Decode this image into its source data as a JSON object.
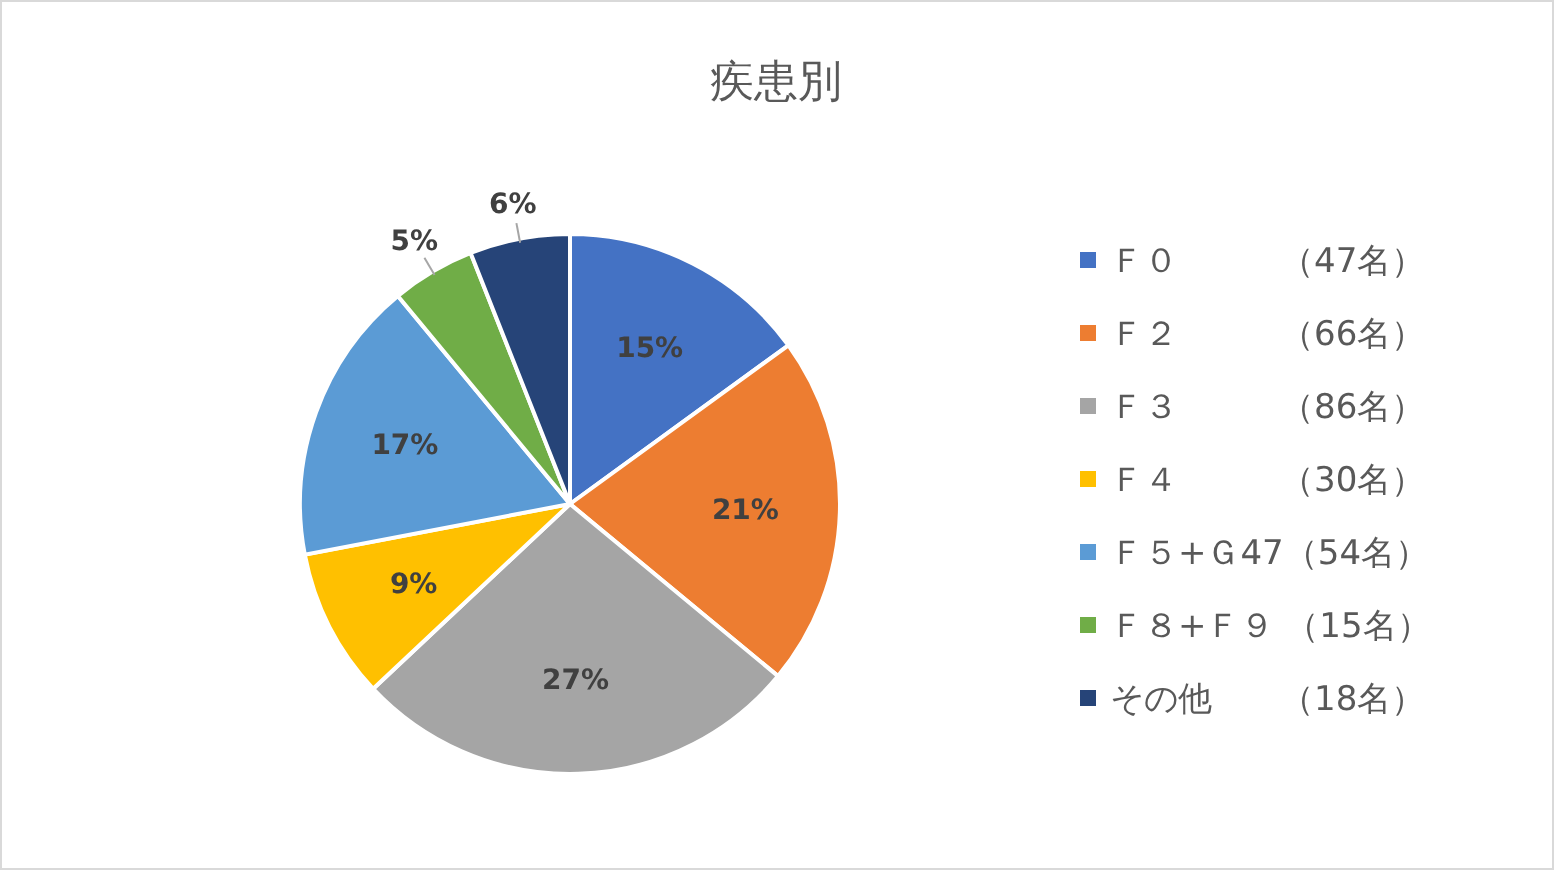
{
  "chart_data": {
    "type": "pie",
    "title": "疾患別",
    "categories": [
      "Ｆ０　　　（47名）",
      "Ｆ２　　　（66名）",
      "Ｆ３　　　（86名）",
      "Ｆ４　　　（30名）",
      "Ｆ５+Ｇ47（54名）",
      "Ｆ８+Ｆ９ （15名）",
      "その他　　（18名）"
    ],
    "values": [
      15,
      21,
      27,
      9,
      17,
      5,
      6
    ],
    "colors": [
      "#4472c4",
      "#ed7d31",
      "#a5a5a5",
      "#ffc000",
      "#5b9bd5",
      "#70ad47",
      "#264478"
    ],
    "value_labels": [
      "15%",
      "21%",
      "27%",
      "9%",
      "17%",
      "5%",
      "6%"
    ],
    "legend": "right"
  }
}
